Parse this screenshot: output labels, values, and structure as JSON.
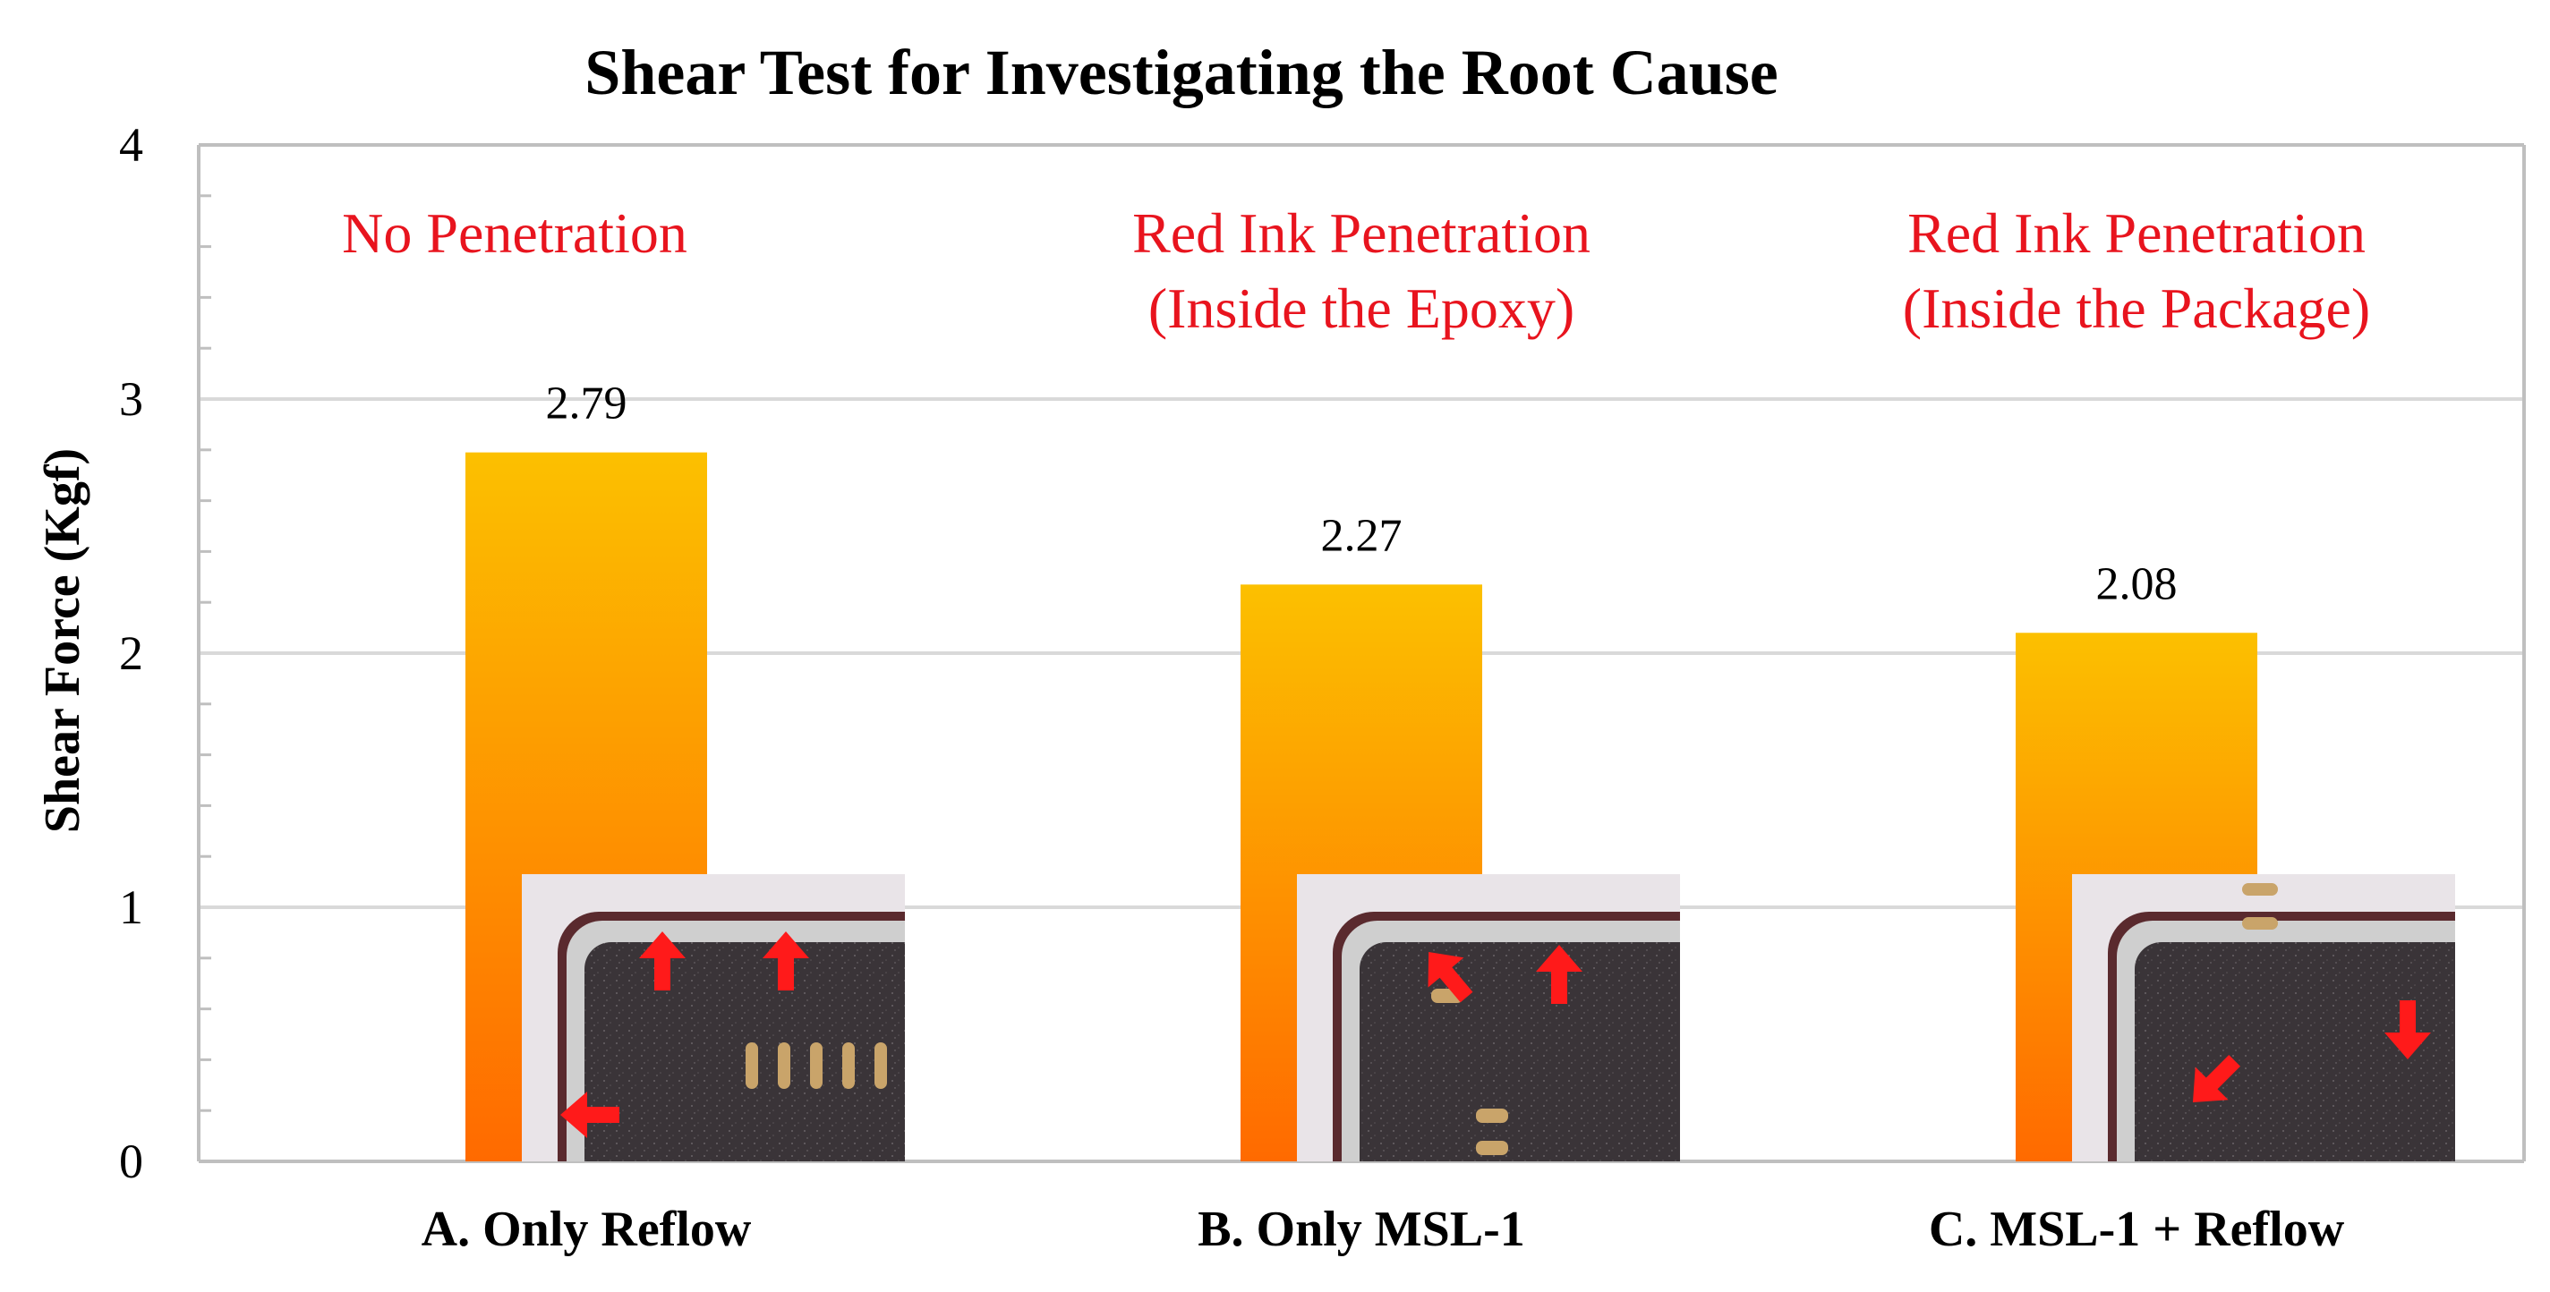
{
  "chart_data": {
    "type": "bar",
    "title": "Shear Test for Investigating the Root Cause",
    "ylabel": "Shear Force (Kgf)",
    "xlabel": "",
    "ylim": [
      0,
      4
    ],
    "yticks": [
      "0",
      "1",
      "2",
      "3",
      "4"
    ],
    "grid": true,
    "categories": [
      "A. Only Reflow",
      "B. Only MSL-1",
      "C. MSL-1 + Reflow"
    ],
    "values": [
      2.79,
      2.27,
      2.08
    ],
    "data_labels": [
      "2.79",
      "2.27",
      "2.08"
    ],
    "annotations": [
      [
        "No Penetration"
      ],
      [
        "Red Ink Penetration",
        "(Inside the Epoxy)"
      ],
      [
        "Red Ink Penetration",
        "(Inside the Package)"
      ]
    ],
    "colors": {
      "bar_top": "#fcc000",
      "bar_bottom": "#ff6a00",
      "annotation": "#e8141e",
      "grid": "#d9d9d9",
      "axis": "#bfbfbf",
      "photo_board": "#3a3438",
      "photo_ring": "#cfcfcf",
      "photo_pad": "#c9a46a",
      "arrow": "#ff1a1a"
    }
  }
}
